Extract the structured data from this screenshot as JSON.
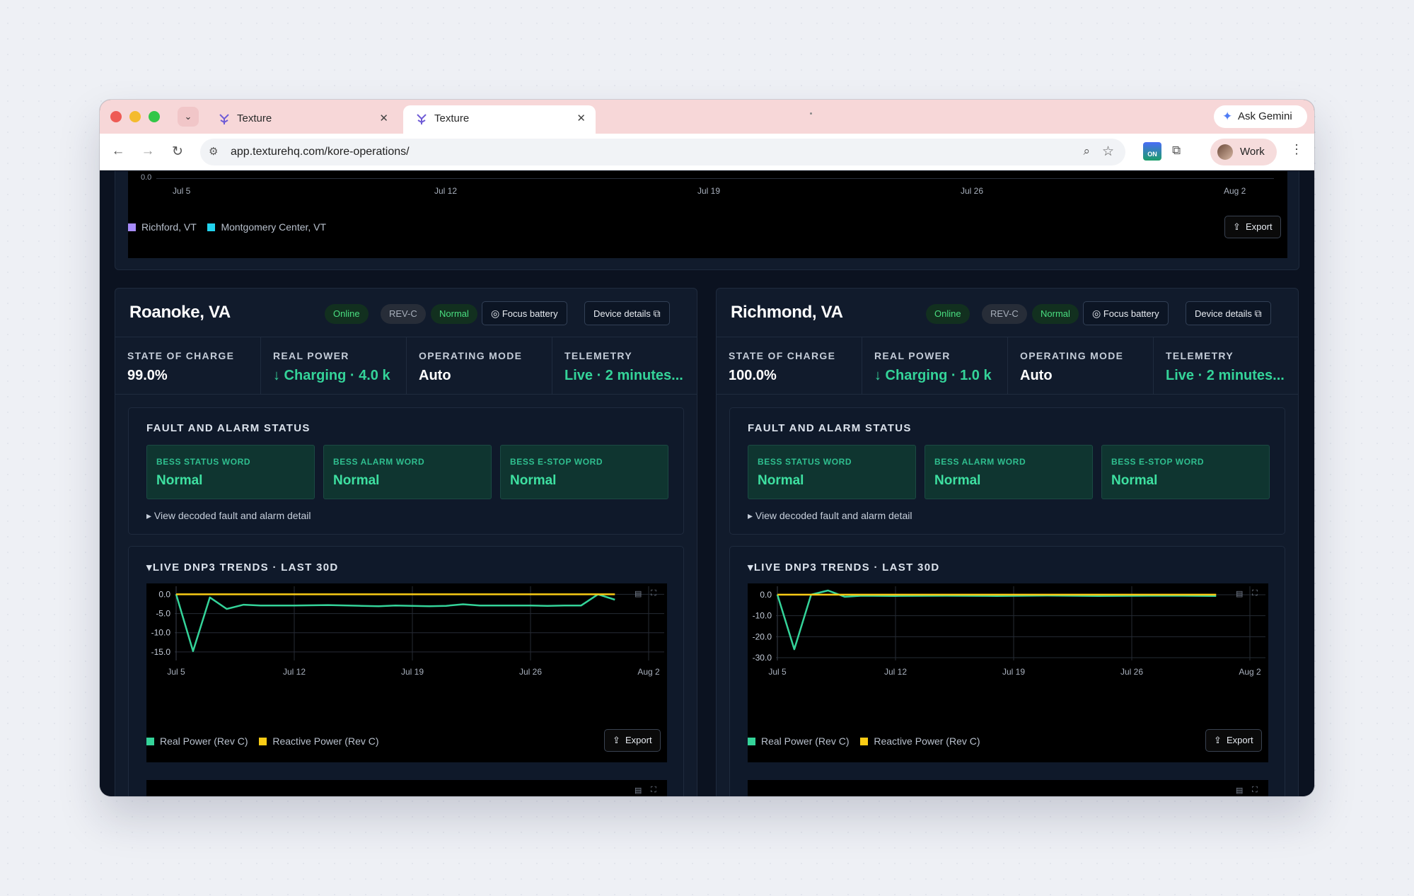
{
  "browser": {
    "tabs": [
      {
        "title": "Texture",
        "active": false
      },
      {
        "title": "Texture",
        "active": true
      }
    ],
    "url": "app.texturehq.com/kore-operations/",
    "ask_gemini": "Ask Gemini",
    "profile": "Work",
    "extension_badge": "ON"
  },
  "top_chart": {
    "chart_data": {
      "type": "line",
      "x_ticks": [
        "Jul 5",
        "Jul 12",
        "Jul 19",
        "Jul 26",
        "Aug 2"
      ],
      "y_ticks": [
        "0.0"
      ],
      "series": [
        {
          "name": "Richford, VT",
          "color": "#a78bfa"
        },
        {
          "name": "Montgomery Center, VT",
          "color": "#22d3ee"
        }
      ]
    },
    "export_label": "Export"
  },
  "sites": [
    {
      "name": "Roanoke, VA",
      "badges": [
        "Online",
        "REV-C",
        "Normal"
      ],
      "focus_label": "Focus battery",
      "details_label": "Device details",
      "stats": [
        {
          "label": "STATE OF CHARGE",
          "value": "99.0%"
        },
        {
          "label": "REAL POWER",
          "value": "↓ Charging · 4.0 k"
        },
        {
          "label": "OPERATING MODE",
          "value": "Auto"
        },
        {
          "label": "TELEMETRY",
          "value": "Live · 2 minutes..."
        }
      ],
      "fault_title": "FAULT AND ALARM STATUS",
      "faults": [
        {
          "label": "BESS STATUS WORD",
          "value": "Normal"
        },
        {
          "label": "BESS ALARM WORD",
          "value": "Normal"
        },
        {
          "label": "BESS E-STOP WORD",
          "value": "Normal"
        }
      ],
      "fault_link": "▸ View decoded fault and alarm detail",
      "trend_title": "▾LIVE DNP3 TRENDS · LAST 30D",
      "chart_data": {
        "type": "line",
        "x": [
          "Jul 5",
          "Jul 6",
          "Jul 7",
          "Jul 8",
          "Jul 9",
          "Jul 10",
          "Jul 12",
          "Jul 14",
          "Jul 16",
          "Jul 17",
          "Jul 18",
          "Jul 20",
          "Jul 21",
          "Jul 22",
          "Jul 23",
          "Jul 24",
          "Jul 26",
          "Jul 27",
          "Jul 28",
          "Jul 29",
          "Jul 30",
          "Jul 31"
        ],
        "x_ticks": [
          "Jul 5",
          "Jul 12",
          "Jul 19",
          "Jul 26",
          "Aug 2"
        ],
        "y_ticks": [
          "0.0",
          "-5.0",
          "-10.0",
          "-15.0"
        ],
        "ylim": [
          -16.5,
          1.0
        ],
        "series": [
          {
            "name": "Real Power (Rev C)",
            "color": "#34d399",
            "values": [
              0.0,
              -14.8,
              -0.8,
              -3.8,
              -2.7,
              -2.9,
              -2.9,
              -2.8,
              -3.0,
              -3.1,
              -2.9,
              -3.1,
              -3.0,
              -2.6,
              -2.9,
              -2.9,
              -2.9,
              -3.0,
              -2.9,
              -2.9,
              0.0,
              -1.4
            ]
          },
          {
            "name": "Reactive Power (Rev C)",
            "color": "#facc15",
            "values": [
              0.0,
              0.0,
              0.0,
              0.0,
              0.0,
              0.0,
              0.0,
              0.0,
              0.0,
              0.0,
              0.0,
              0.0,
              0.0,
              0.0,
              0.0,
              0.0,
              0.0,
              0.0,
              0.0,
              0.0,
              0.0,
              0.0
            ]
          }
        ]
      },
      "export_label": "Export"
    },
    {
      "name": "Richmond, VA",
      "badges": [
        "Online",
        "REV-C",
        "Normal"
      ],
      "focus_label": "Focus battery",
      "details_label": "Device details",
      "stats": [
        {
          "label": "STATE OF CHARGE",
          "value": "100.0%"
        },
        {
          "label": "REAL POWER",
          "value": "↓ Charging · 1.0 k"
        },
        {
          "label": "OPERATING MODE",
          "value": "Auto"
        },
        {
          "label": "TELEMETRY",
          "value": "Live · 2 minutes..."
        }
      ],
      "fault_title": "FAULT AND ALARM STATUS",
      "faults": [
        {
          "label": "BESS STATUS WORD",
          "value": "Normal"
        },
        {
          "label": "BESS ALARM WORD",
          "value": "Normal"
        },
        {
          "label": "BESS E-STOP WORD",
          "value": "Normal"
        }
      ],
      "fault_link": "▸ View decoded fault and alarm detail",
      "trend_title": "▾LIVE DNP3 TRENDS · LAST 30D",
      "chart_data": {
        "type": "line",
        "x": [
          "Jul 5",
          "Jul 6",
          "Jul 7",
          "Jul 8",
          "Jul 9",
          "Jul 10",
          "Jul 12",
          "Jul 15",
          "Jul 18",
          "Jul 21",
          "Jul 24",
          "Jul 27",
          "Jul 29",
          "Jul 31"
        ],
        "x_ticks": [
          "Jul 5",
          "Jul 12",
          "Jul 19",
          "Jul 26",
          "Aug 2"
        ],
        "y_ticks": [
          "0.0",
          "-10.0",
          "-20.0",
          "-30.0"
        ],
        "ylim": [
          -30.0,
          2.0
        ],
        "series": [
          {
            "name": "Real Power (Rev C)",
            "color": "#34d399",
            "values": [
              0.0,
              -26.0,
              0.0,
              2.0,
              -1.0,
              -0.5,
              -0.6,
              -0.5,
              -0.6,
              -0.4,
              -0.6,
              -0.5,
              -0.5,
              -0.6
            ]
          },
          {
            "name": "Reactive Power (Rev C)",
            "color": "#facc15",
            "values": [
              0.0,
              0.0,
              0.0,
              0.0,
              0.0,
              0.0,
              0.0,
              0.0,
              0.0,
              0.0,
              0.0,
              0.0,
              0.0,
              0.0
            ]
          }
        ]
      },
      "export_label": "Export"
    }
  ]
}
